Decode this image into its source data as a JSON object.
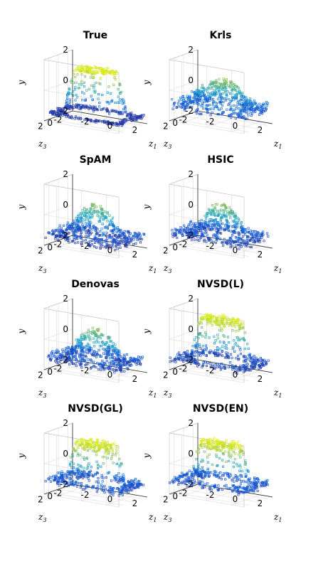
{
  "colors": {
    "parula_low": "#352a87",
    "parula_mid_low": "#0f5cdd",
    "parula_mid": "#1aa8c6",
    "parula_mid_high": "#8cbd4f",
    "parula_high": "#f9fb0e"
  },
  "chart_data": [
    {
      "type": "scatter3d",
      "title": "True",
      "xlabel": "z",
      "xlabel_sub": "1",
      "ylabel": "z",
      "ylabel_sub": "3",
      "zlabel": "y",
      "z_ticks": [
        "2",
        "0",
        "-2"
      ],
      "x_ticks": [
        "-2",
        "0",
        "2"
      ],
      "y_ticks": [
        "2",
        "0",
        "-2"
      ],
      "zlim": [
        -2,
        2
      ],
      "shape": "plateau",
      "plateau_height": 1.4,
      "noise": 0.05,
      "base": -1.5
    },
    {
      "type": "scatter3d",
      "title": "Krls",
      "xlabel": "z",
      "xlabel_sub": "1",
      "ylabel": "z",
      "ylabel_sub": "3",
      "zlabel": "y",
      "z_ticks": [
        "2",
        "0",
        "-2"
      ],
      "x_ticks": [
        "-2",
        "0",
        "2"
      ],
      "y_ticks": [
        "2",
        "0",
        "-2"
      ],
      "zlim": [
        -2,
        2
      ],
      "shape": "smooth",
      "plateau_height": 0.6,
      "noise": 0.35,
      "base": -0.9
    },
    {
      "type": "scatter3d",
      "title": "SpAM",
      "xlabel": "z",
      "xlabel_sub": "1",
      "ylabel": "z",
      "ylabel_sub": "3",
      "zlabel": "y",
      "z_ticks": [
        "2",
        "0",
        "-2"
      ],
      "x_ticks": [
        "-2",
        "0",
        "2"
      ],
      "y_ticks": [
        "2",
        "0",
        "-2"
      ],
      "zlim": [
        -2,
        2
      ],
      "shape": "dome",
      "plateau_height": 0.4,
      "noise": 0.3,
      "base": -1.3
    },
    {
      "type": "scatter3d",
      "title": "HSIC",
      "xlabel": "z",
      "xlabel_sub": "1",
      "ylabel": "z",
      "ylabel_sub": "3",
      "zlabel": "y",
      "z_ticks": [
        "2",
        "0",
        "-2"
      ],
      "x_ticks": [
        "-2",
        "0",
        "2"
      ],
      "y_ticks": [
        "2",
        "0",
        "-2"
      ],
      "zlim": [
        -2,
        2
      ],
      "shape": "dome",
      "plateau_height": 0.5,
      "noise": 0.3,
      "base": -1.2
    },
    {
      "type": "scatter3d",
      "title": "Denovas",
      "xlabel": "z",
      "xlabel_sub": "1",
      "ylabel": "z",
      "ylabel_sub": "3",
      "zlabel": "y",
      "z_ticks": [
        "2",
        "0",
        "-2"
      ],
      "x_ticks": [
        "-2",
        "0",
        "2"
      ],
      "y_ticks": [
        "2",
        "0",
        "-2"
      ],
      "zlim": [
        -2,
        2
      ],
      "shape": "dome",
      "plateau_height": 0.5,
      "noise": 0.3,
      "base": -1.2
    },
    {
      "type": "scatter3d",
      "title": "NVSD(L)",
      "xlabel": "z",
      "xlabel_sub": "1",
      "ylabel": "z",
      "ylabel_sub": "3",
      "zlabel": "y",
      "z_ticks": [
        "2",
        "0",
        "-2"
      ],
      "x_ticks": [
        "-2",
        "0",
        "2"
      ],
      "y_ticks": [
        "2",
        "0",
        "-2"
      ],
      "zlim": [
        -2,
        2
      ],
      "shape": "plateau",
      "plateau_height": 1.3,
      "noise": 0.2,
      "base": -1.3
    },
    {
      "type": "scatter3d",
      "title": "NVSD(GL)",
      "xlabel": "z",
      "xlabel_sub": "1",
      "ylabel": "z",
      "ylabel_sub": "3",
      "zlabel": "y",
      "z_ticks": [
        "2",
        "0",
        "-2"
      ],
      "x_ticks": [
        "-2",
        "0",
        "2"
      ],
      "y_ticks": [
        "2",
        "0",
        "-2"
      ],
      "zlim": [
        -2,
        2
      ],
      "shape": "plateau",
      "plateau_height": 1.3,
      "noise": 0.22,
      "base": -1.1
    },
    {
      "type": "scatter3d",
      "title": "NVSD(EN)",
      "xlabel": "z",
      "xlabel_sub": "1",
      "ylabel": "z",
      "ylabel_sub": "3",
      "zlabel": "y",
      "z_ticks": [
        "2",
        "0",
        "-2"
      ],
      "x_ticks": [
        "-2",
        "0",
        "2"
      ],
      "y_ticks": [
        "2",
        "0",
        "-2"
      ],
      "zlim": [
        -2,
        2
      ],
      "shape": "plateau",
      "plateau_height": 1.3,
      "noise": 0.22,
      "base": -1.1
    }
  ]
}
